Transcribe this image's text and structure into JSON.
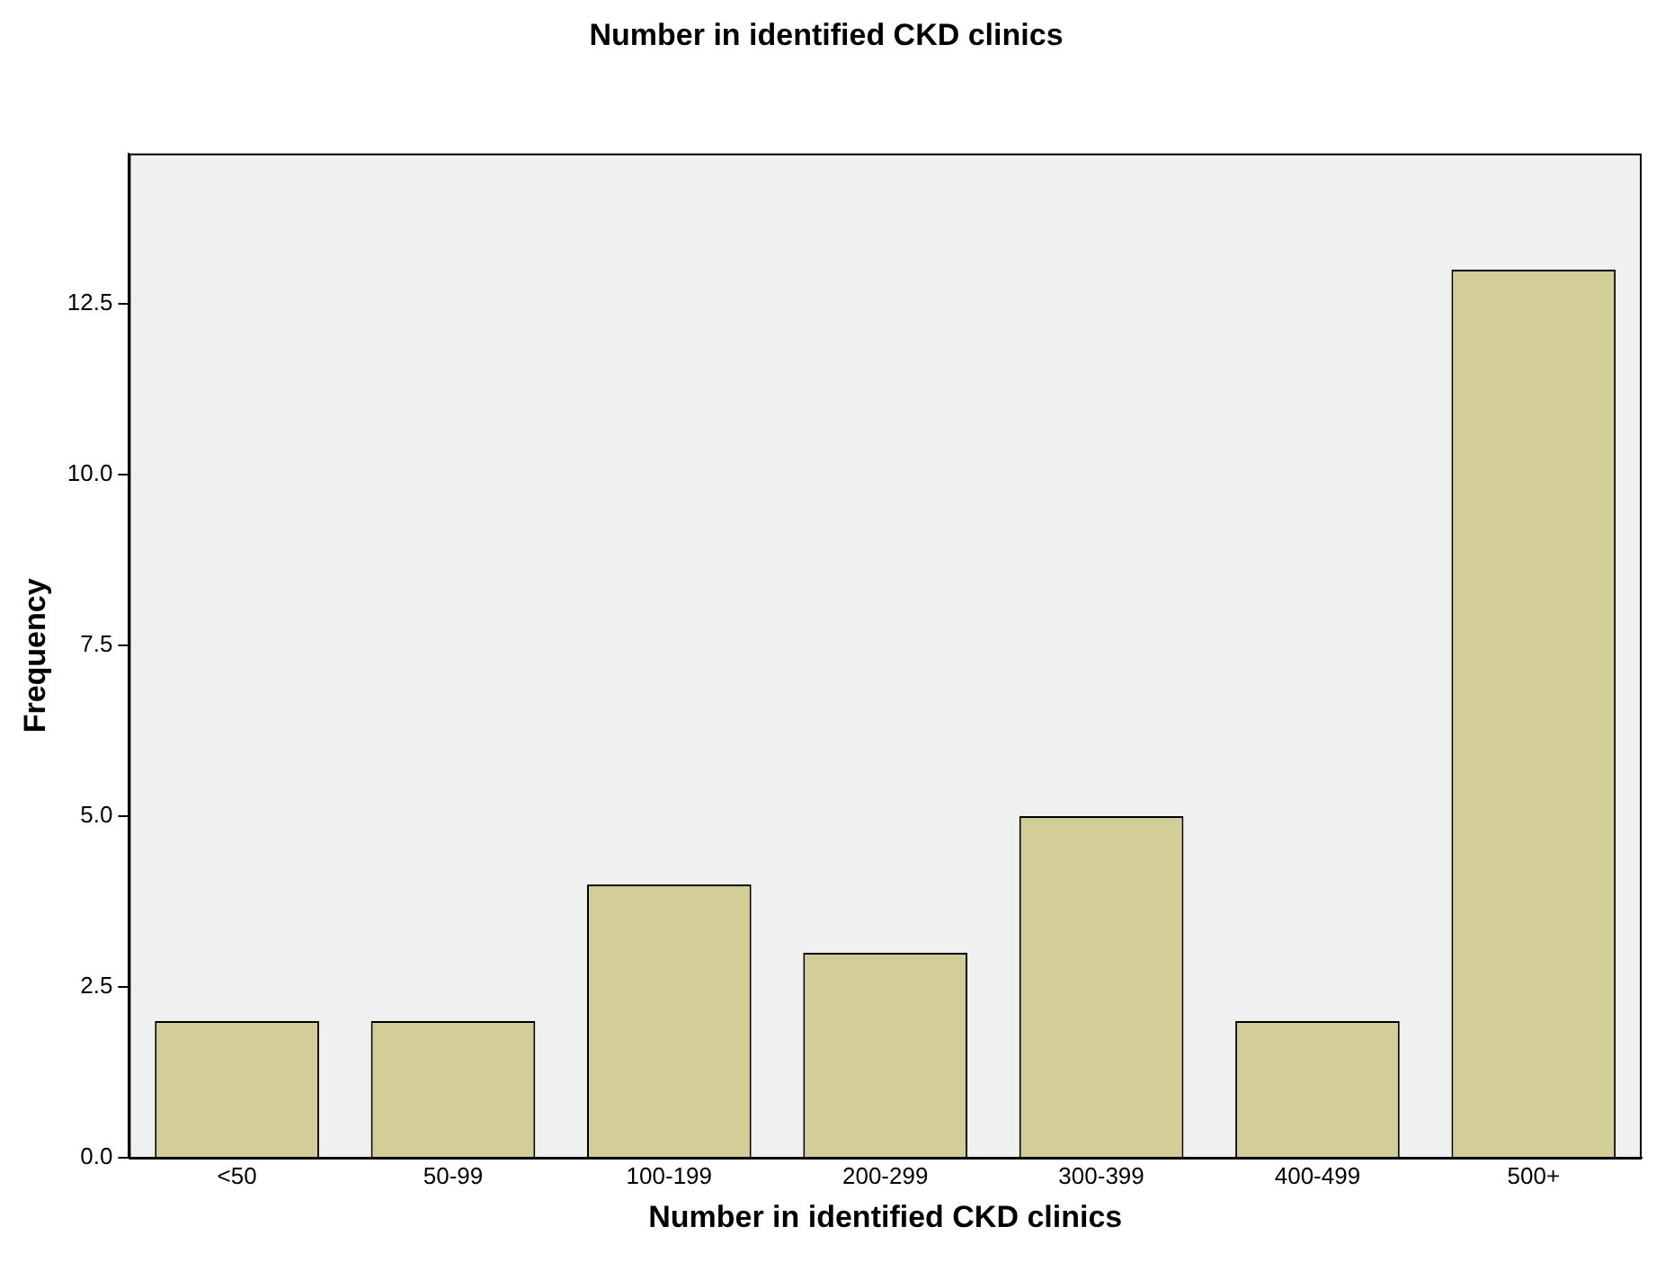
{
  "chart_data": {
    "type": "bar",
    "title": "Number in identified CKD clinics",
    "xlabel": "Number in identified CKD clinics",
    "ylabel": "Frequency",
    "categories": [
      "<50",
      "50-99",
      "100-199",
      "200-299",
      "300-399",
      "400-499",
      "500+"
    ],
    "values": [
      2,
      2,
      4,
      3,
      5,
      2,
      13
    ],
    "color": "#d3ce98",
    "ylim": [
      0,
      14.7
    ],
    "yticks": [
      {
        "value": 0,
        "label": "0.0"
      },
      {
        "value": 2.5,
        "label": "2.5"
      },
      {
        "value": 5,
        "label": "5.0"
      },
      {
        "value": 7.5,
        "label": "7.5"
      },
      {
        "value": 10,
        "label": "10.0"
      },
      {
        "value": 12.5,
        "label": "12.5"
      }
    ],
    "grid": false,
    "legend": false
  }
}
